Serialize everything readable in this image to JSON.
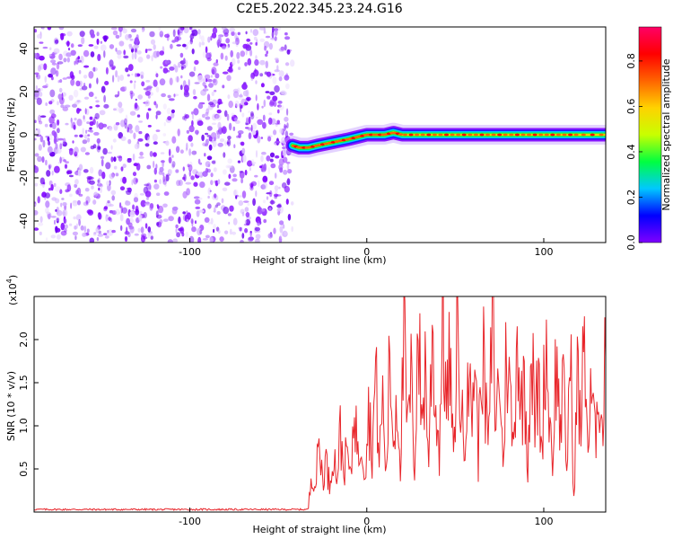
{
  "page_title": "C2E5.2022.345.23.24.G16",
  "colors": {
    "spectrum": "#7f00ff",
    "snr_line": "#e8262b",
    "axis": "#000000"
  },
  "chart_data": [
    {
      "type": "heatmap",
      "title": "C2E5.2022.345.23.24.G16",
      "xlabel": "Height of straight line (km)",
      "ylabel": "Frequency (Hz)",
      "xlim": [
        -188,
        135
      ],
      "ylim": [
        -50,
        50
      ],
      "xticks": [
        -100,
        0,
        100
      ],
      "yticks": [
        -40,
        -20,
        0,
        20,
        40
      ],
      "grid": false,
      "noise_region_x": [
        -188,
        -42
      ],
      "signal_ridge": {
        "x": [
          -42,
          -38,
          -33,
          -28,
          -22,
          -16,
          -10,
          -5,
          0,
          5,
          10,
          15,
          20,
          30,
          40,
          50,
          60,
          70,
          80,
          90,
          100,
          110,
          120,
          135
        ],
        "y": [
          -5,
          -6,
          -6,
          -5,
          -4,
          -3,
          -2,
          -1,
          0,
          0,
          0,
          1,
          0,
          0,
          0,
          0,
          0,
          0,
          0,
          0,
          0,
          0,
          0,
          0
        ]
      },
      "colorbar": {
        "label": "Normalized spectral amplitude",
        "range": [
          0.0,
          0.95
        ],
        "ticks": [
          "0.0",
          "0.2",
          "0.4",
          "0.6",
          "0.8"
        ],
        "tick_values": [
          0.0,
          0.2,
          0.4,
          0.6,
          0.8
        ],
        "colors": [
          "#7f00ff",
          "#0000ff",
          "#00c8ff",
          "#00ff40",
          "#c8ff00",
          "#ffd200",
          "#ff6400",
          "#ff0000",
          "#ff0066"
        ]
      }
    },
    {
      "type": "line",
      "xlabel": "Height of straight line (km)",
      "ylabel": "SNR (10 * v/v)",
      "scale_label": "(x10",
      "scale_exponent": "4",
      "scale_suffix": ")",
      "xlim": [
        -188,
        135
      ],
      "ylim": [
        0,
        2.5
      ],
      "xticks": [
        -100,
        0,
        100
      ],
      "yticks": [
        "0.5",
        "1.0",
        "1.5",
        "2.0"
      ],
      "ytick_values": [
        0.5,
        1.0,
        1.5,
        2.0
      ],
      "series": [
        {
          "x": [
            -188,
            -160,
            -130,
            -100,
            -70,
            -45,
            -33,
            -31,
            -29,
            -27,
            -25,
            -23,
            -21,
            -19,
            -17,
            -15,
            -13,
            -11,
            -9,
            -7,
            -5,
            -3,
            -1,
            1,
            3,
            5,
            7,
            9,
            11,
            13,
            15,
            17,
            19,
            21,
            23,
            25,
            27,
            29,
            31,
            33,
            35,
            37,
            39,
            41,
            43,
            45,
            47,
            49,
            51,
            53,
            55,
            57,
            59,
            61,
            63,
            65,
            67,
            69,
            71,
            73,
            75,
            77,
            79,
            81,
            83,
            85,
            87,
            89,
            91,
            93,
            95,
            97,
            99,
            101,
            103,
            105,
            107,
            109,
            111,
            113,
            115,
            117,
            119,
            121,
            123,
            125,
            127,
            129,
            131,
            133,
            135
          ],
          "y": [
            0.03,
            0.03,
            0.03,
            0.03,
            0.03,
            0.03,
            0.05,
            0.5,
            0.3,
            0.8,
            0.4,
            0.6,
            0.3,
            0.75,
            0.4,
            0.9,
            0.5,
            0.7,
            0.35,
            1.4,
            0.6,
            0.9,
            0.5,
            1.2,
            0.7,
            1.6,
            0.6,
            1.3,
            0.4,
            1.8,
            0.8,
            1.4,
            0.6,
            2.0,
            0.9,
            1.5,
            0.5,
            2.3,
            1.0,
            1.7,
            0.6,
            2.1,
            1.2,
            0.7,
            2.5,
            1.1,
            1.8,
            0.5,
            2.2,
            1.3,
            0.7,
            2.0,
            1.0,
            1.9,
            0.6,
            2.1,
            1.2,
            0.8,
            2.3,
            1.0,
            1.7,
            0.5,
            2.0,
            1.3,
            0.7,
            2.3,
            1.1,
            1.6,
            0.6,
            2.0,
            1.0,
            1.5,
            0.7,
            2.1,
            1.2,
            0.6,
            1.8,
            1.0,
            1.4,
            0.5,
            1.9,
            0.15,
            1.6,
            0.9,
            2.2,
            0.7,
            1.4,
            0.8,
            1.7,
            0.9,
            1.8
          ]
        }
      ]
    }
  ]
}
